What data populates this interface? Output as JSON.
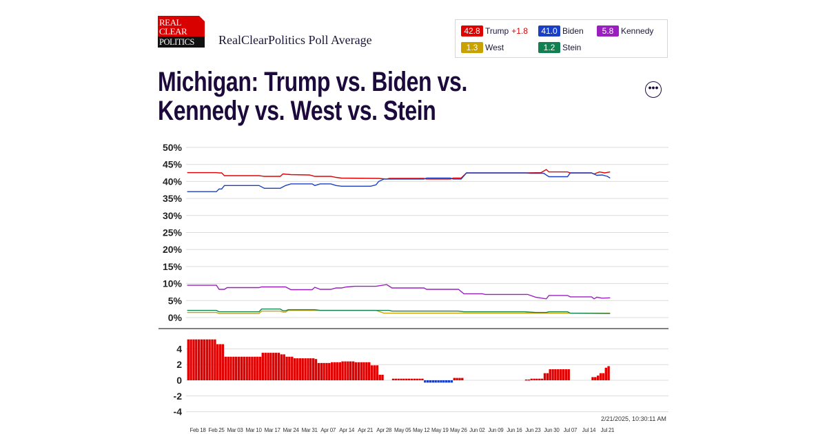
{
  "header": {
    "logo_lines": [
      "REAL",
      "CLEAR",
      "POLITICS"
    ],
    "subtitle": "RealClearPolitics Poll Average",
    "more_button": "•••"
  },
  "legend": [
    {
      "value": "42.8",
      "name": "Trump",
      "change": "+1.8",
      "color": "#e00000"
    },
    {
      "value": "41.0",
      "name": "Biden",
      "color": "#1a3fc4"
    },
    {
      "value": "5.8",
      "name": "Kennedy",
      "color": "#9b1fc0"
    },
    {
      "value": "1.3",
      "name": "West",
      "color": "#c9a100"
    },
    {
      "value": "1.2",
      "name": "Stein",
      "color": "#128050"
    }
  ],
  "title_lines": [
    "Michigan: Trump vs. Biden vs.",
    "Kennedy vs. West vs. Stein"
  ],
  "timestamp": "2/21/2025, 10:30:11 AM",
  "chart_data": [
    {
      "type": "line",
      "ylim": [
        0,
        50
      ],
      "y_ticks": [
        "0%",
        "5%",
        "10%",
        "15%",
        "20%",
        "25%",
        "30%",
        "35%",
        "40%",
        "45%",
        "50%"
      ],
      "grid": true,
      "series": [
        {
          "name": "Trump",
          "color": "#e00000",
          "points": [
            [
              "Feb 14",
              42.6
            ],
            [
              "Feb 25",
              42.6
            ],
            [
              "Feb 26",
              42.5
            ],
            [
              "Feb 27",
              42.5
            ],
            [
              "Feb 28",
              41.7
            ],
            [
              "Mar 12",
              41.7
            ],
            [
              "Mar 14",
              41.5
            ],
            [
              "Mar 20",
              41.5
            ],
            [
              "Mar 21",
              42.2
            ],
            [
              "Mar 24",
              42.0
            ],
            [
              "Mar 31",
              41.9
            ],
            [
              "Apr 02",
              41.5
            ],
            [
              "Apr 08",
              41.5
            ],
            [
              "Apr 10",
              41.2
            ],
            [
              "Apr 12",
              41.0
            ],
            [
              "Apr 26",
              40.9
            ],
            [
              "Apr 29",
              40.7
            ],
            [
              "Apr 30",
              40.9
            ],
            [
              "May 13",
              40.9
            ],
            [
              "May 14",
              40.7
            ],
            [
              "May 23",
              40.7
            ],
            [
              "May 24",
              41.0
            ],
            [
              "May 27",
              41.0
            ],
            [
              "May 29",
              42.5
            ],
            [
              "Jun 20",
              42.5
            ],
            [
              "Jun 26",
              42.6
            ],
            [
              "Jun 28",
              43.5
            ],
            [
              "Jun 29",
              42.8
            ],
            [
              "Jul 06",
              42.8
            ],
            [
              "Jul 07",
              42.5
            ],
            [
              "Jul 15",
              42.5
            ],
            [
              "Jul 16",
              42.2
            ],
            [
              "Jul 18",
              42.8
            ],
            [
              "Jul 20",
              42.5
            ],
            [
              "Jul 22",
              42.8
            ]
          ]
        },
        {
          "name": "Biden",
          "color": "#1a3fc4",
          "points": [
            [
              "Feb 14",
              37.0
            ],
            [
              "Feb 25",
              37.0
            ],
            [
              "Feb 26",
              37.8
            ],
            [
              "Feb 27",
              37.8
            ],
            [
              "Feb 28",
              38.8
            ],
            [
              "Mar 12",
              38.8
            ],
            [
              "Mar 14",
              38.0
            ],
            [
              "Mar 20",
              38.0
            ],
            [
              "Mar 22",
              38.8
            ],
            [
              "Mar 24",
              39.3
            ],
            [
              "Apr 01",
              39.3
            ],
            [
              "Apr 02",
              38.8
            ],
            [
              "Apr 04",
              39.3
            ],
            [
              "Apr 08",
              39.3
            ],
            [
              "Apr 10",
              38.8
            ],
            [
              "Apr 12",
              38.6
            ],
            [
              "Apr 23",
              38.6
            ],
            [
              "Apr 25",
              39.0
            ],
            [
              "Apr 26",
              40.0
            ],
            [
              "Apr 28",
              40.7
            ],
            [
              "May 13",
              40.7
            ],
            [
              "May 14",
              41.0
            ],
            [
              "May 23",
              41.0
            ],
            [
              "May 24",
              40.7
            ],
            [
              "May 27",
              40.7
            ],
            [
              "May 29",
              42.5
            ],
            [
              "Jun 20",
              42.5
            ],
            [
              "Jun 22",
              42.4
            ],
            [
              "Jun 27",
              42.4
            ],
            [
              "Jun 29",
              41.4
            ],
            [
              "Jul 06",
              41.4
            ],
            [
              "Jul 07",
              42.5
            ],
            [
              "Jul 15",
              42.5
            ],
            [
              "Jul 17",
              41.8
            ],
            [
              "Jul 19",
              41.9
            ],
            [
              "Jul 21",
              41.5
            ],
            [
              "Jul 22",
              41.0
            ]
          ]
        },
        {
          "name": "Kennedy",
          "color": "#9b1fc0",
          "points": [
            [
              "Feb 14",
              9.5
            ],
            [
              "Feb 25",
              9.5
            ],
            [
              "Feb 26",
              8.3
            ],
            [
              "Feb 28",
              8.3
            ],
            [
              "Feb 29",
              8.8
            ],
            [
              "Mar 12",
              8.8
            ],
            [
              "Mar 13",
              9.0
            ],
            [
              "Mar 22",
              9.0
            ],
            [
              "Mar 24",
              8.2
            ],
            [
              "Apr 01",
              8.2
            ],
            [
              "Apr 02",
              8.9
            ],
            [
              "Apr 04",
              8.3
            ],
            [
              "Apr 08",
              8.3
            ],
            [
              "Apr 10",
              8.7
            ],
            [
              "Apr 12",
              8.7
            ],
            [
              "Apr 14",
              9.0
            ],
            [
              "Apr 17",
              9.2
            ],
            [
              "Apr 25",
              9.2
            ],
            [
              "Apr 29",
              9.7
            ],
            [
              "May 01",
              8.7
            ],
            [
              "May 13",
              8.7
            ],
            [
              "May 14",
              8.3
            ],
            [
              "May 26",
              8.3
            ],
            [
              "May 28",
              7.0
            ],
            [
              "Jun 04",
              7.0
            ],
            [
              "Jun 05",
              6.8
            ],
            [
              "Jun 21",
              6.8
            ],
            [
              "Jun 24",
              6.0
            ],
            [
              "Jun 28",
              5.5
            ],
            [
              "Jun 29",
              6.5
            ],
            [
              "Jul 06",
              6.5
            ],
            [
              "Jul 07",
              6.1
            ],
            [
              "Jul 15",
              6.1
            ],
            [
              "Jul 16",
              5.5
            ],
            [
              "Jul 17",
              6.0
            ],
            [
              "Jul 19",
              5.7
            ],
            [
              "Jul 22",
              5.8
            ]
          ]
        },
        {
          "name": "West",
          "color": "#c9a100",
          "points": [
            [
              "Feb 14",
              1.5
            ],
            [
              "Feb 25",
              1.5
            ],
            [
              "Feb 26",
              1.2
            ],
            [
              "Mar 12",
              1.2
            ],
            [
              "Mar 13",
              1.9
            ],
            [
              "Mar 20",
              1.9
            ],
            [
              "Mar 21",
              1.6
            ],
            [
              "Mar 22",
              1.6
            ],
            [
              "Mar 23",
              2.1
            ],
            [
              "Apr 25",
              2.1
            ],
            [
              "Apr 28",
              1.3
            ],
            [
              "Jul 22",
              1.3
            ]
          ]
        },
        {
          "name": "Stein",
          "color": "#128050",
          "points": [
            [
              "Feb 14",
              2.1
            ],
            [
              "Feb 25",
              2.1
            ],
            [
              "Feb 26",
              1.7
            ],
            [
              "Mar 12",
              1.7
            ],
            [
              "Mar 13",
              2.5
            ],
            [
              "Mar 20",
              2.5
            ],
            [
              "Mar 21",
              2.0
            ],
            [
              "Mar 22",
              2.0
            ],
            [
              "Mar 23",
              2.3
            ],
            [
              "Apr 02",
              2.3
            ],
            [
              "Apr 04",
              2.1
            ],
            [
              "Apr 30",
              2.1
            ],
            [
              "May 01",
              1.9
            ],
            [
              "May 26",
              1.9
            ],
            [
              "May 28",
              1.7
            ],
            [
              "Jun 20",
              1.7
            ],
            [
              "Jun 24",
              1.5
            ],
            [
              "Jun 28",
              1.5
            ],
            [
              "Jun 29",
              1.7
            ],
            [
              "Jul 06",
              1.7
            ],
            [
              "Jul 07",
              1.3
            ],
            [
              "Jul 22",
              1.2
            ]
          ]
        }
      ]
    },
    {
      "type": "bar",
      "ylim": [
        -5,
        5
      ],
      "y_ticks": [
        "4",
        "2",
        "0",
        "-2",
        "-4"
      ],
      "grid": true,
      "positive_color": "#e00000",
      "negative_color": "#1a3fc4",
      "steps": [
        [
          "Feb 14",
          5.5
        ],
        [
          "Feb 25",
          4.6
        ],
        [
          "Feb 28",
          3.0
        ],
        [
          "Mar 13",
          3.5
        ],
        [
          "Mar 20",
          3.3
        ],
        [
          "Mar 22",
          3.0
        ],
        [
          "Mar 25",
          2.8
        ],
        [
          "Apr 02",
          2.7
        ],
        [
          "Apr 03",
          2.2
        ],
        [
          "Apr 08",
          2.3
        ],
        [
          "Apr 12",
          2.4
        ],
        [
          "Apr 17",
          2.3
        ],
        [
          "Apr 23",
          1.9
        ],
        [
          "Apr 26",
          0.7
        ],
        [
          "Apr 28",
          0
        ],
        [
          "May 01",
          0.2
        ],
        [
          "May 13",
          -0.3
        ],
        [
          "May 24",
          0.3
        ],
        [
          "May 28",
          0
        ],
        [
          "Jun 20",
          0.1
        ],
        [
          "Jun 22",
          0.2
        ],
        [
          "Jun 27",
          0.9
        ],
        [
          "Jun 29",
          1.4
        ],
        [
          "Jul 07",
          0
        ],
        [
          "Jul 15",
          0.4
        ],
        [
          "Jul 17",
          0.6
        ],
        [
          "Jul 18",
          0.9
        ],
        [
          "Jul 20",
          1.6
        ],
        [
          "Jul 21",
          1.8
        ]
      ],
      "end_date": "Jul 22"
    }
  ],
  "x_ticks": [
    "Feb 18",
    "Feb 25",
    "Mar 03",
    "Mar 10",
    "Mar 17",
    "Mar 24",
    "Mar 31",
    "Apr 07",
    "Apr 14",
    "Apr 21",
    "Apr 28",
    "May 05",
    "May 12",
    "May 19",
    "May 26",
    "Jun 02",
    "Jun 09",
    "Jun 16",
    "Jun 23",
    "Jun 30",
    "Jul 07",
    "Jul 14",
    "Jul 21"
  ]
}
